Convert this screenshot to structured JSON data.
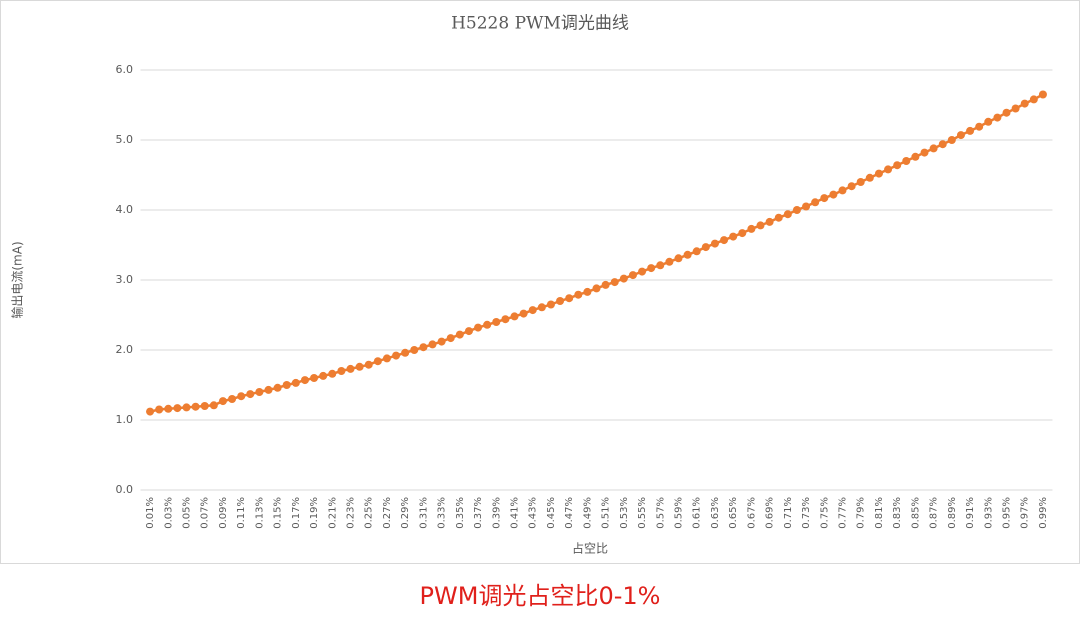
{
  "chart_data": {
    "type": "line",
    "title": "H5228 PWM调光曲线",
    "y_label": "输出电流(mA)",
    "x_label": "占空比",
    "caption": "PWM调光占空比0-1%",
    "categories": [
      "0.01%",
      null,
      "0.03%",
      null,
      "0.05%",
      null,
      "0.07%",
      null,
      "0.09%",
      null,
      "0.11%",
      null,
      "0.13%",
      null,
      "0.15%",
      null,
      "0.17%",
      null,
      "0.19%",
      null,
      "0.21%",
      null,
      "0.23%",
      null,
      "0.25%",
      null,
      "0.27%",
      null,
      "0.29%",
      null,
      "0.31%",
      null,
      "0.33%",
      null,
      "0.35%",
      null,
      "0.37%",
      null,
      "0.39%",
      null,
      "0.41%",
      null,
      "0.43%",
      null,
      "0.45%",
      null,
      "0.47%",
      null,
      "0.49%",
      null,
      "0.51%",
      null,
      "0.53%",
      null,
      "0.55%",
      null,
      "0.57%",
      null,
      "0.59%",
      null,
      "0.61%",
      null,
      "0.63%",
      null,
      "0.65%",
      null,
      "0.67%",
      null,
      "0.69%",
      null,
      "0.71%",
      null,
      "0.73%",
      null,
      "0.75%",
      null,
      "0.77%",
      null,
      "0.79%",
      null,
      "0.81%",
      null,
      "0.83%",
      null,
      "0.85%",
      null,
      "0.87%",
      null,
      "0.89%",
      null,
      "0.91%",
      null,
      "0.93%",
      null,
      "0.95%",
      null,
      "0.97%",
      null,
      "0.99%"
    ],
    "values": [
      1.12,
      1.15,
      1.16,
      1.17,
      1.18,
      1.19,
      1.2,
      1.21,
      1.27,
      1.3,
      1.34,
      1.37,
      1.4,
      1.43,
      1.46,
      1.5,
      1.53,
      1.57,
      1.6,
      1.63,
      1.66,
      1.7,
      1.73,
      1.76,
      1.79,
      1.84,
      1.88,
      1.92,
      1.96,
      2.0,
      2.04,
      2.08,
      2.12,
      2.17,
      2.22,
      2.27,
      2.32,
      2.36,
      2.4,
      2.44,
      2.48,
      2.52,
      2.57,
      2.61,
      2.65,
      2.7,
      2.74,
      2.79,
      2.83,
      2.88,
      2.93,
      2.97,
      3.02,
      3.07,
      3.12,
      3.17,
      3.21,
      3.26,
      3.31,
      3.36,
      3.41,
      3.47,
      3.52,
      3.57,
      3.62,
      3.67,
      3.73,
      3.78,
      3.83,
      3.89,
      3.94,
      4.0,
      4.05,
      4.11,
      4.17,
      4.22,
      4.28,
      4.34,
      4.4,
      4.46,
      4.52,
      4.58,
      4.64,
      4.7,
      4.76,
      4.82,
      4.88,
      4.94,
      5.0,
      5.07,
      5.13,
      5.19,
      5.26,
      5.32,
      5.39,
      5.45,
      5.52,
      5.58,
      5.65
    ],
    "color": "#ed7d31",
    "ylim": [
      0,
      6
    ],
    "yticks": [
      {
        "value": 0,
        "label": "0.0"
      },
      {
        "value": 1,
        "label": "1.0"
      },
      {
        "value": 2,
        "label": "2.0"
      },
      {
        "value": 3,
        "label": "3.0"
      },
      {
        "value": 4,
        "label": "4.0"
      },
      {
        "value": 5,
        "label": "5.0"
      },
      {
        "value": 6,
        "label": "6.0"
      }
    ],
    "grid": true
  }
}
